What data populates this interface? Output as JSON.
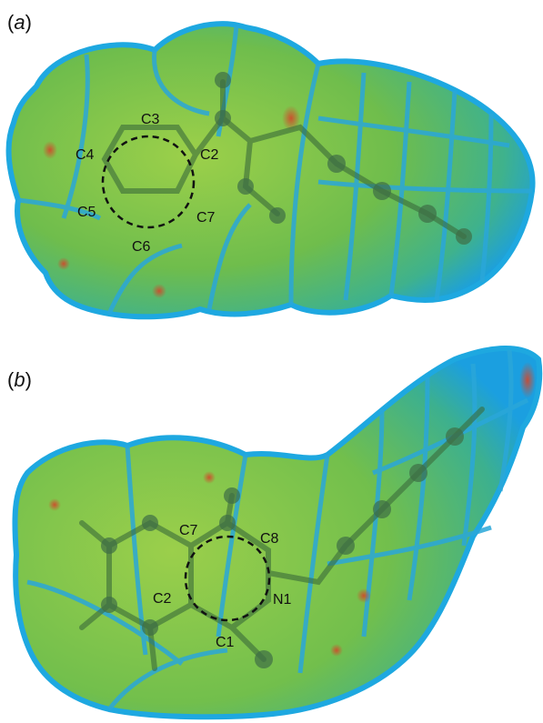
{
  "panels": {
    "a": {
      "label_open": "(",
      "label_letter": "a",
      "label_close": ")",
      "atoms": [
        "C3",
        "C4",
        "C2",
        "C5",
        "C7",
        "C6"
      ]
    },
    "b": {
      "label_open": "(",
      "label_letter": "b",
      "label_close": ")",
      "atoms": [
        "C7",
        "C8",
        "C2",
        "N1",
        "C1"
      ]
    }
  },
  "colors": {
    "surface_green": "#7fc24a",
    "surface_edge_blue": "#1ea8e0",
    "hotspot_red": "#d2462a",
    "ring_dash": "#111111"
  }
}
